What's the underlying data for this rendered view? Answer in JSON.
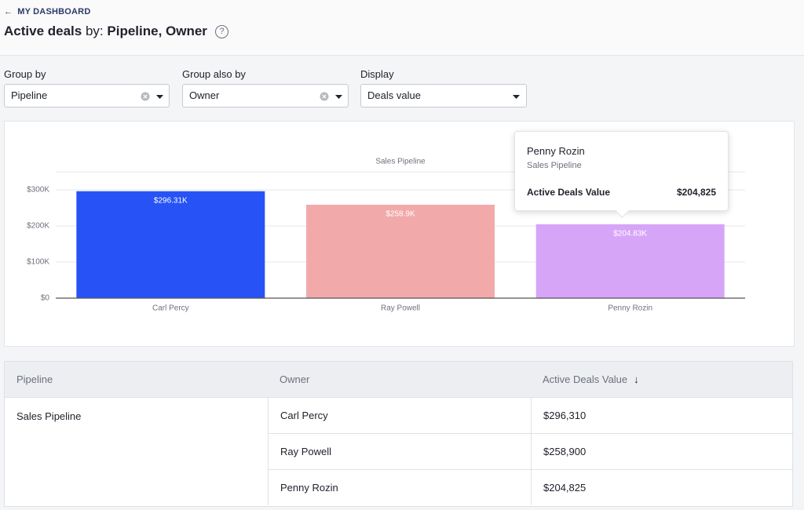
{
  "header": {
    "back_link": "MY DASHBOARD",
    "title": "Active deals",
    "title_by": "by:",
    "title_groups": "Pipeline, Owner",
    "help": "?"
  },
  "controls": [
    {
      "label": "Group by",
      "value": "Pipeline"
    },
    {
      "label": "Group also by",
      "value": "Owner"
    },
    {
      "label": "Display",
      "value": "Deals value"
    }
  ],
  "chart_data": {
    "type": "bar",
    "categories": [
      "Carl Percy",
      "Ray Powell",
      "Penny Rozin"
    ],
    "series": [
      {
        "name": "Sales Pipeline",
        "colors": [
          "#2752f6",
          "#f2a9aa",
          "#d7a5f7"
        ],
        "values": [
          296310,
          258900,
          204825
        ],
        "value_labels": [
          "$296.31K",
          "$258.9K",
          "$204.83K"
        ]
      }
    ],
    "ylim": [
      0,
      350000
    ],
    "yticks": [
      {
        "value": 0,
        "label": "$0"
      },
      {
        "value": 100000,
        "label": "$100K"
      },
      {
        "value": 200000,
        "label": "$200K"
      },
      {
        "value": 300000,
        "label": "$300K"
      }
    ],
    "grid": true
  },
  "tooltip": {
    "title": "Penny Rozin",
    "subtitle": "Sales Pipeline",
    "label": "Active Deals Value",
    "value": "$204,825"
  },
  "table": {
    "columns": [
      "Pipeline",
      "Owner",
      "Active Deals Value"
    ],
    "groups": [
      {
        "pipeline": "Sales Pipeline",
        "rows": [
          [
            "Carl Percy",
            "$296,310"
          ],
          [
            "Ray Powell",
            "$258,900"
          ],
          [
            "Penny Rozin",
            "$204,825"
          ]
        ]
      }
    ]
  }
}
